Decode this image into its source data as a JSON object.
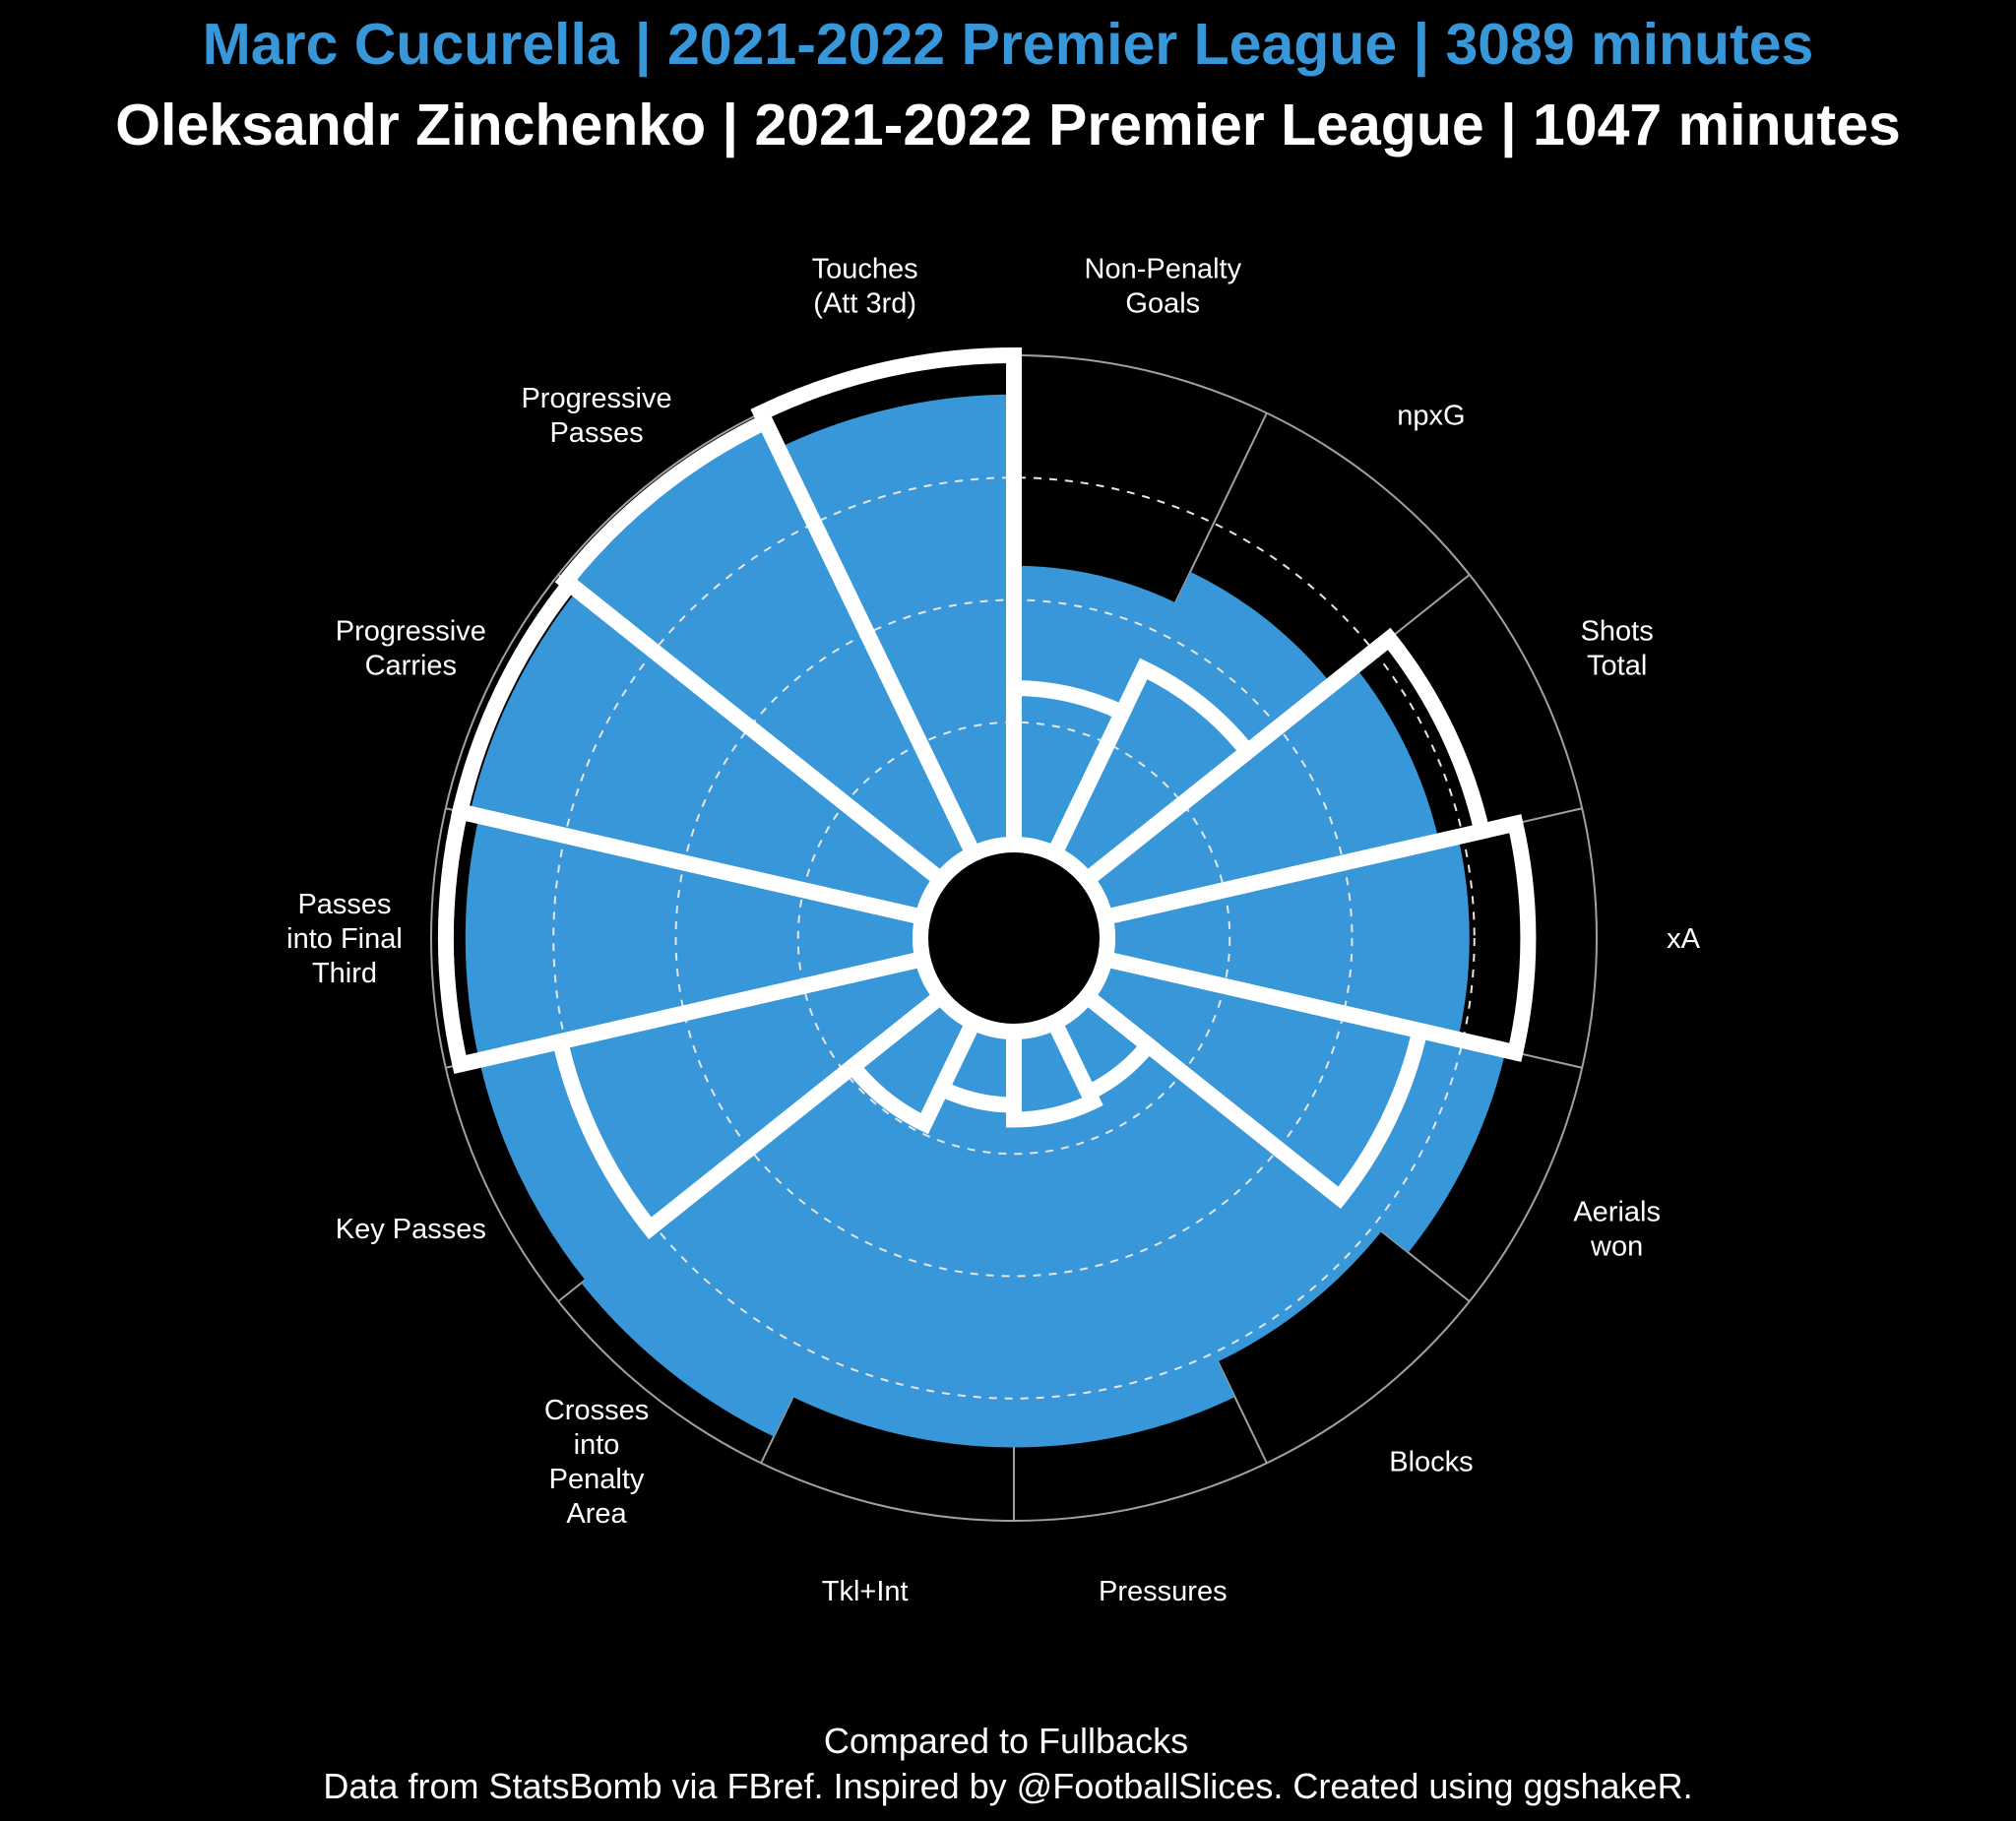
{
  "colors": {
    "background": "#000000",
    "player1": "#3797d9",
    "player2": "#ffffff",
    "grid": "#a0a0a0"
  },
  "header": {
    "player1_title": "Marc Cucurella | 2021-2022 Premier League | 3089 minutes",
    "player2_title": "Oleksandr Zinchenko | 2021-2022 Premier League | 1047 minutes"
  },
  "footer": {
    "comparison": "Compared to Fullbacks",
    "credits": "Data from StatsBomb via FBref. Inspired by @FootballSlices. Created using ggshakeR."
  },
  "chart_data": {
    "type": "polar-bar",
    "title": "",
    "scale": "percentile",
    "ylim": [
      0,
      100
    ],
    "gridlines": [
      25,
      50,
      75
    ],
    "categories": [
      [
        "Non-Penalty",
        "Goals"
      ],
      [
        "npxG"
      ],
      [
        "Shots",
        "Total"
      ],
      [
        "xA"
      ],
      [
        "Aerials",
        "won"
      ],
      [
        "Blocks"
      ],
      [
        "Pressures"
      ],
      [
        "Tkl+Int"
      ],
      [
        "Crosses",
        "into",
        "Penalty",
        "Area"
      ],
      [
        "Key Passes"
      ],
      [
        "Passes",
        "into Final",
        "Third"
      ],
      [
        "Progressive",
        "Carries"
      ],
      [
        "Progressive",
        "Passes"
      ],
      [
        "Touches",
        "(Att 3rd)"
      ]
    ],
    "series": [
      {
        "name": "Marc Cucurella",
        "values": [
          57,
          64,
          70,
          74,
          84,
          77,
          85,
          85,
          94,
          93,
          93,
          95,
          97,
          92
        ]
      },
      {
        "name": "Oleksandr Zinchenko",
        "values": [
          32,
          42,
          79,
          86,
          66,
          16,
          18,
          15,
          23,
          76,
          97,
          97,
          98,
          100
        ]
      }
    ]
  }
}
